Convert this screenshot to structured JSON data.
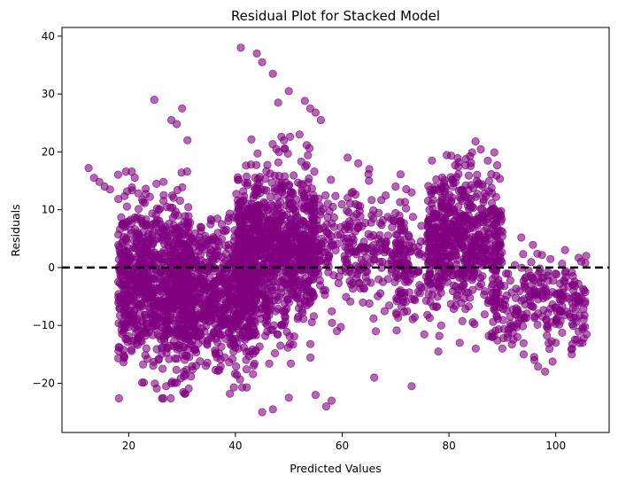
{
  "chart_data": {
    "type": "scatter",
    "title": "Residual Plot for Stacked Model",
    "xlabel": "Predicted Values",
    "ylabel": "Residuals",
    "xlim": [
      7.5,
      110
    ],
    "ylim": [
      -28.5,
      41.5
    ],
    "x_ticks": [
      20,
      40,
      60,
      80,
      100
    ],
    "y_ticks": [
      -20,
      -10,
      0,
      10,
      20,
      30,
      40
    ],
    "grid": false,
    "legend": "none",
    "marker_color": "#800080",
    "marker_alpha": 0.6,
    "reference_line": {
      "y": 0,
      "style": "dashed",
      "color": "#000000"
    },
    "clusters": [
      {
        "x_range": [
          18,
          32
        ],
        "y_center": -3,
        "y_spread": 14,
        "count": 900
      },
      {
        "x_range": [
          30,
          44
        ],
        "y_center": -5,
        "y_spread": 12,
        "count": 700
      },
      {
        "x_range": [
          40,
          55
        ],
        "y_center": 3,
        "y_spread": 14,
        "count": 1000
      },
      {
        "x_range": [
          55,
          72
        ],
        "y_center": 3,
        "y_spread": 10,
        "count": 280
      },
      {
        "x_range": [
          70,
          78
        ],
        "y_center": 0,
        "y_spread": 10,
        "count": 120
      },
      {
        "x_range": [
          76,
          90
        ],
        "y_center": 5,
        "y_spread": 12,
        "count": 600
      },
      {
        "x_range": [
          88,
          106
        ],
        "y_center": -6,
        "y_spread": 8,
        "count": 250
      }
    ],
    "extreme_points": [
      [
        12.5,
        17.2
      ],
      [
        13.5,
        15.5
      ],
      [
        14.5,
        14.8
      ],
      [
        15.5,
        14
      ],
      [
        16.5,
        13.5
      ],
      [
        24.8,
        29
      ],
      [
        28,
        25.5
      ],
      [
        29,
        24.8
      ],
      [
        30,
        27.5
      ],
      [
        31,
        22
      ],
      [
        41,
        38
      ],
      [
        44,
        37
      ],
      [
        45,
        35.5
      ],
      [
        47,
        33.5
      ],
      [
        48,
        28.5
      ],
      [
        50,
        30.5
      ],
      [
        52,
        23
      ],
      [
        53,
        28.8
      ],
      [
        54,
        27.5
      ],
      [
        55,
        26.8
      ],
      [
        56,
        25.5
      ],
      [
        61,
        19
      ],
      [
        63,
        18
      ],
      [
        65,
        15
      ],
      [
        70,
        14
      ],
      [
        73,
        13
      ],
      [
        27,
        -20.5
      ],
      [
        28,
        -20
      ],
      [
        45,
        -25
      ],
      [
        47,
        -24.5
      ],
      [
        50,
        -22.5
      ],
      [
        55,
        -22
      ],
      [
        57,
        -24
      ],
      [
        58,
        -23
      ],
      [
        66,
        -19
      ],
      [
        73,
        -20.5
      ],
      [
        78,
        -14.5
      ],
      [
        82,
        -13
      ],
      [
        85,
        -14
      ],
      [
        88,
        -12
      ],
      [
        90,
        -14
      ],
      [
        94,
        -15
      ],
      [
        96,
        -16
      ],
      [
        98,
        -18
      ],
      [
        100,
        -13
      ],
      [
        103,
        -15
      ],
      [
        105,
        -13
      ]
    ]
  }
}
